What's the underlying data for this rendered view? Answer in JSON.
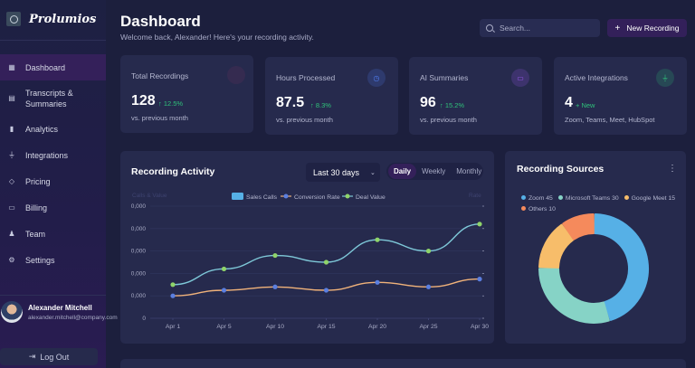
{
  "brand": {
    "name": "Prolumios",
    "logo_icon": "globe-logo-icon"
  },
  "sidebar": {
    "items": [
      {
        "label": "Dashboard",
        "icon": "grid-icon",
        "glyph": "▦",
        "active": true
      },
      {
        "label": "Transcripts & Summaries",
        "icon": "document-icon",
        "glyph": "▤",
        "active": false
      },
      {
        "label": "Analytics",
        "icon": "bar-chart-icon",
        "glyph": "▮",
        "active": false
      },
      {
        "label": "Integrations",
        "icon": "plug-icon",
        "glyph": "⏚",
        "active": false
      },
      {
        "label": "Pricing",
        "icon": "tag-icon",
        "glyph": "◇",
        "active": false
      },
      {
        "label": "Billing",
        "icon": "credit-card-icon",
        "glyph": "▭",
        "active": false
      },
      {
        "label": "Team",
        "icon": "users-icon",
        "glyph": "♟",
        "active": false
      },
      {
        "label": "Settings",
        "icon": "gear-icon",
        "glyph": "⚙",
        "active": false
      }
    ],
    "user": {
      "name": "Alexander Mitchell",
      "email": "alexander.mitchell@company.com"
    },
    "logout_label": "Log Out"
  },
  "header": {
    "title": "Dashboard",
    "subtitle": "Welcome back, Alexander! Here's your recording activity.",
    "search_placeholder": "Search...",
    "new_button_label": "New Recording"
  },
  "stats": [
    {
      "label": "Total Recordings",
      "value": "128",
      "change": "↑ 12.5%",
      "note": "vs. previous month",
      "icon": "microphone-icon",
      "icon_color": "#e0457b"
    },
    {
      "label": "Hours Processed",
      "value": "87.5",
      "change": "↑ 8.3%",
      "note": "vs. previous month",
      "icon": "clock-icon",
      "icon_color": "#4f7df0"
    },
    {
      "label": "AI Summaries",
      "value": "96",
      "change": "↑ 15.2%",
      "note": "vs. previous month",
      "icon": "summary-icon",
      "icon_color": "#9b59f0"
    },
    {
      "label": "Active Integrations",
      "value": "4",
      "change": "+ New",
      "note": "Zoom, Teams, Meet, HubSpot",
      "icon": "plug-icon",
      "icon_color": "#2fc27a"
    }
  ],
  "activity": {
    "title": "Recording Activity",
    "range_selected": "Last 30 days",
    "segments": [
      "Daily",
      "Weekly",
      "Monthly"
    ],
    "segment_active": "Daily"
  },
  "sources": {
    "title": "Recording Sources",
    "menu_icon": "kebab-menu-icon"
  },
  "chart_data": [
    {
      "type": "line",
      "title": "Recording Activity",
      "ylabel": "Calls & Value",
      "y2label": "Rate",
      "x": [
        "Apr 1",
        "Apr 5",
        "Apr 10",
        "Apr 15",
        "Apr 20",
        "Apr 25",
        "Apr 30"
      ],
      "yticks": [
        "0",
        "0,000",
        "0,000",
        "0,000",
        "0,000",
        "0,000"
      ],
      "ylim": [
        0,
        5
      ],
      "legend": [
        "Sales Calls",
        "Conversion Rate",
        "Deal Value"
      ],
      "legend_position": "top-center",
      "grid": true,
      "series": [
        {
          "name": "Deal Value",
          "color": "#7ec8d8",
          "marker_color": "#8fd46a",
          "values": [
            1.5,
            2.2,
            2.8,
            2.5,
            3.5,
            3.0,
            4.2
          ]
        },
        {
          "name": "Conversion Rate",
          "color": "#f0b27a",
          "marker_color": "#5b7fe0",
          "values": [
            1.0,
            1.25,
            1.4,
            1.25,
            1.6,
            1.4,
            1.75
          ]
        }
      ]
    },
    {
      "type": "pie",
      "title": "Recording Sources",
      "legend_position": "top",
      "slices": [
        {
          "label": "Zoom",
          "value": 45,
          "color": "#56b0e6"
        },
        {
          "label": "Microsoft Teams",
          "value": 30,
          "color": "#86d3c6"
        },
        {
          "label": "Google Meet",
          "value": 15,
          "color": "#f7bd6a"
        },
        {
          "label": "Others",
          "value": 10,
          "color": "#f58a5c"
        }
      ]
    }
  ]
}
